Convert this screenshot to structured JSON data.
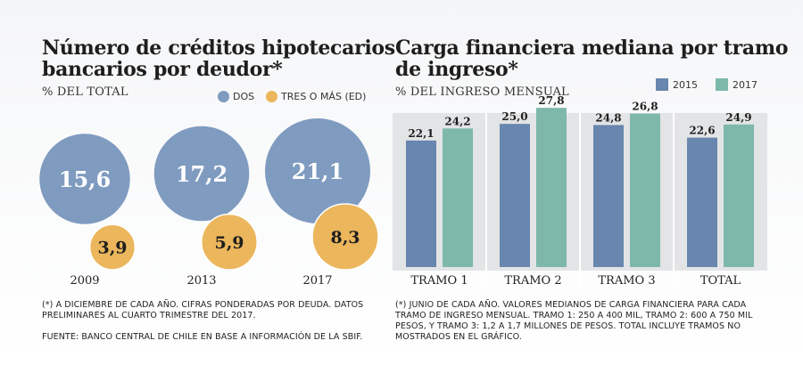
{
  "left": {
    "title_line1": "Número de créditos hipotecarios",
    "title_line2": "bancarios por deudor*",
    "subtitle": "% DEL TOTAL",
    "legend": [
      {
        "label": "DOS",
        "color": "#7f9bc0"
      },
      {
        "label": "TRES O MÁS (ED)",
        "color": "#ebb65c"
      }
    ],
    "note1_line1": "(*) A DICIEMBRE DE CADA AÑO. CIFRAS PONDERADAS POR DEUDA. DATOS",
    "note1_line2": "PRELIMINARES AL CUARTO TRIMESTRE DEL 2017.",
    "note2": "FUENTE: BANCO CENTRAL DE CHILE EN BASE A INFORMACIÓN DE LA SBIF."
  },
  "right": {
    "title_line1": "Carga financiera mediana por tramo",
    "title_line2": "de ingreso*",
    "subtitle": "% DEL INGRESO MENSUAL",
    "legend": [
      {
        "label": "2015",
        "color": "#6886ae"
      },
      {
        "label": "2017",
        "color": "#7db8ab"
      }
    ],
    "note_line1": "(*) JUNIO DE CADA AÑO. VALORES MEDIANOS DE CARGA FINANCIERA PARA CADA",
    "note_line2": "TRAMO DE INGRESO MENSUAL. TRAMO 1: 250 A 400 MIL, TRAMO 2: 600 A 750 MIL",
    "note_line3": "PESOS, Y TRAMO 3: 1,2 A 1,7 MILLONES DE PESOS. TOTAL INCLUYE TRAMOS NO",
    "note_line4": "MOSTRADOS EN EL GRÁFICO."
  },
  "chart_data": [
    {
      "type": "bubble",
      "title": "Número de créditos hipotecarios bancarios por deudor*",
      "subtitle": "% DEL TOTAL",
      "categories": [
        "2009",
        "2013",
        "2017"
      ],
      "series": [
        {
          "name": "DOS",
          "values": [
            15.6,
            17.2,
            21.1
          ],
          "labels": [
            "15,6",
            "17,2",
            "21,1"
          ],
          "color": "#7f9bc0"
        },
        {
          "name": "TRES O MÁS (ED)",
          "values": [
            3.9,
            5.9,
            8.3
          ],
          "labels": [
            "3,9",
            "5,9",
            "8,3"
          ],
          "color": "#ebb65c"
        }
      ]
    },
    {
      "type": "bar",
      "title": "Carga financiera mediana por tramo de ingreso*",
      "subtitle": "% DEL INGRESO MENSUAL",
      "categories": [
        "TRAMO 1",
        "TRAMO 2",
        "TRAMO 3",
        "TOTAL"
      ],
      "series": [
        {
          "name": "2015",
          "values": [
            22.1,
            25.0,
            24.8,
            22.6
          ],
          "labels": [
            "22,1",
            "25,0",
            "24,8",
            "22,6"
          ],
          "color": "#6886ae"
        },
        {
          "name": "2017",
          "values": [
            24.2,
            27.8,
            26.8,
            24.9
          ],
          "labels": [
            "24,2",
            "27,8",
            "26,8",
            "24,9"
          ],
          "color": "#7db8ab"
        }
      ],
      "ylim": [
        0,
        30
      ],
      "grid": false,
      "legend_position": "top-right",
      "panel_background": "#e3e4e6"
    }
  ]
}
